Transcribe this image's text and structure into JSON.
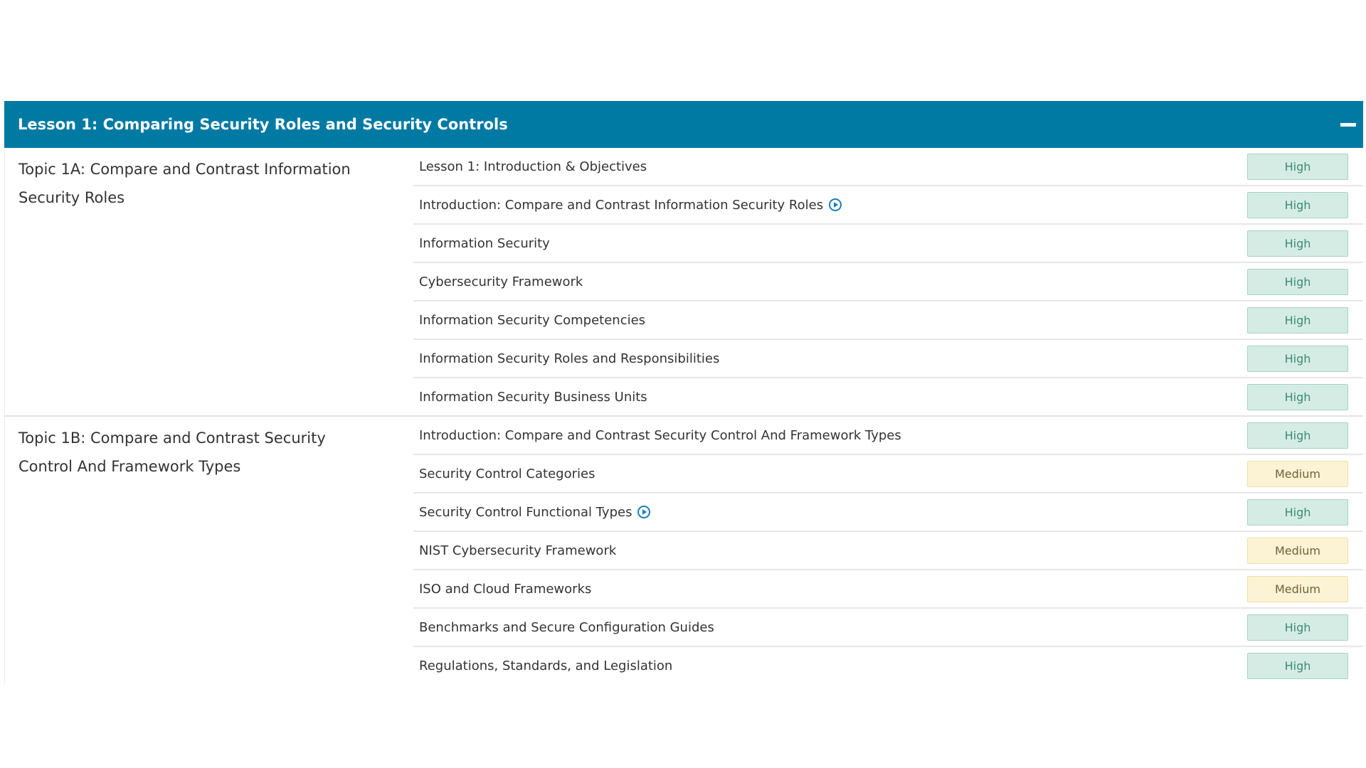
{
  "header": {
    "title": "Lesson 1: Comparing Security Roles and Security Controls"
  },
  "topics": [
    {
      "title": "Topic 1A: Compare and Contrast Information Security Roles",
      "items": [
        {
          "label": "Lesson 1: Introduction & Objectives",
          "priority": "High"
        },
        {
          "label": "Introduction: Compare and Contrast Information Security Roles",
          "priority": "High",
          "video": true
        },
        {
          "label": "Information Security",
          "priority": "High"
        },
        {
          "label": "Cybersecurity Framework",
          "priority": "High"
        },
        {
          "label": "Information Security Competencies",
          "priority": "High"
        },
        {
          "label": "Information Security Roles and Responsibilities",
          "priority": "High"
        },
        {
          "label": "Information Security Business Units",
          "priority": "High"
        }
      ]
    },
    {
      "title": "Topic 1B: Compare and Contrast Security Control And Framework Types",
      "items": [
        {
          "label": "Introduction: Compare and Contrast Security Control And Framework Types",
          "priority": "High"
        },
        {
          "label": "Security Control Categories",
          "priority": "Medium"
        },
        {
          "label": "Security Control Functional Types",
          "priority": "High",
          "video": true
        },
        {
          "label": "NIST Cybersecurity Framework",
          "priority": "Medium"
        },
        {
          "label": "ISO and Cloud Frameworks",
          "priority": "Medium"
        },
        {
          "label": "Benchmarks and Secure Configuration Guides",
          "priority": "High"
        },
        {
          "label": "Regulations, Standards, and Legislation",
          "priority": "High"
        }
      ]
    }
  ]
}
